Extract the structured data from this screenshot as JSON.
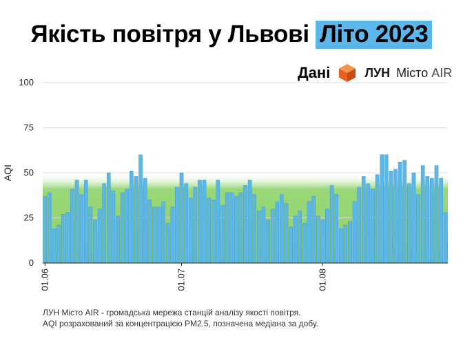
{
  "title": {
    "main": "Якість повітря у Львові",
    "highlight": "Літо 2023",
    "highlight_color": "#5bb7ea"
  },
  "source": {
    "label": "Дані",
    "brand_short": "ЛУН",
    "brand_rest": "Місто",
    "brand_air": "AIR",
    "logo_color": "#f26f21"
  },
  "footnote": {
    "line1": "ЛУН Місто AIR - громадська мережа станцій аналізу якості повітря.",
    "line2": "AQI розрахований за концентрацією PM2.5, позначена медіана за добу."
  },
  "chart_data": {
    "type": "bar",
    "title": "Якість повітря у Львові Літо 2023",
    "xlabel": "",
    "ylabel": "AQI",
    "ylim": [
      0,
      100
    ],
    "yticks": [
      0,
      25,
      50,
      75,
      100
    ],
    "x_tick_labels": [
      {
        "label": "01.06",
        "index": 0
      },
      {
        "label": "01.07",
        "index": 30
      },
      {
        "label": "01.08",
        "index": 61
      }
    ],
    "good_zone": {
      "from": 0,
      "to": 50,
      "color": "#8ed36a"
    },
    "bar_color": "#5bb7ea",
    "values": [
      37,
      39,
      19,
      21,
      27,
      28,
      41,
      46,
      38,
      46,
      31,
      24,
      30,
      44,
      50,
      40,
      26,
      39,
      41,
      51,
      48,
      60,
      47,
      35,
      31,
      31,
      34,
      22,
      31,
      42,
      50,
      44,
      36,
      42,
      46,
      46,
      36,
      35,
      46,
      32,
      39,
      39,
      37,
      39,
      43,
      46,
      38,
      29,
      31,
      24,
      30,
      34,
      38,
      33,
      20,
      26,
      29,
      22,
      34,
      37,
      26,
      24,
      30,
      43,
      38,
      19,
      21,
      23,
      34,
      42,
      48,
      44,
      41,
      49,
      60,
      60,
      51,
      52,
      56,
      57,
      44,
      50,
      38,
      54,
      48,
      47,
      54,
      47,
      28
    ]
  }
}
